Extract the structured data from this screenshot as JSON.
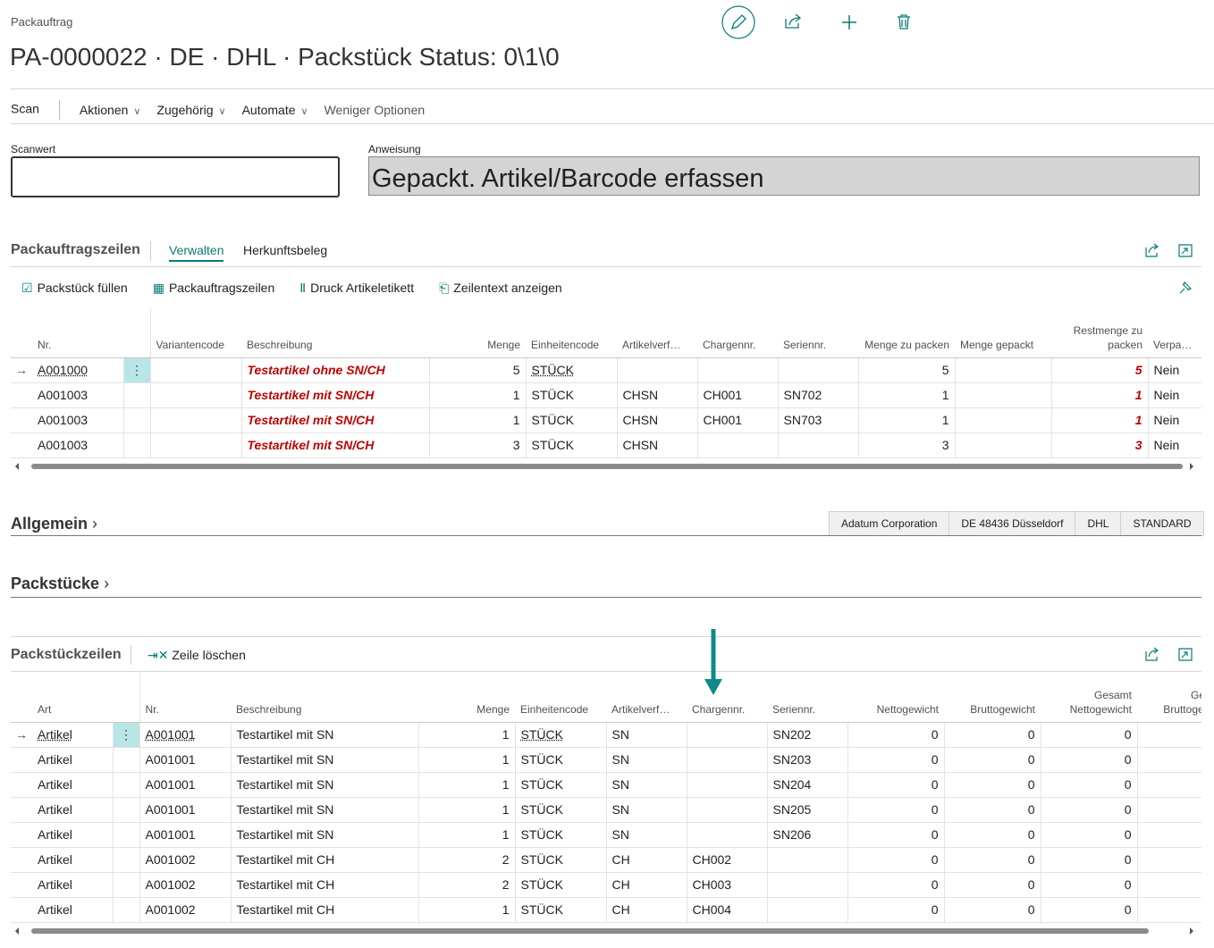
{
  "header": {
    "breadcrumb": "Packauftrag",
    "title": "PA-0000022 · DE · DHL · Packstück Status: 0\\1\\0"
  },
  "actions": [
    "Scan",
    "Aktionen",
    "Zugehörig",
    "Automate",
    "Weniger Optionen"
  ],
  "fields": {
    "scan_label": "Scanwert",
    "instruction_label": "Anweisung",
    "instruction": "Gepackt. Artikel/Barcode erfassen"
  },
  "lines": {
    "title": "Packauftragszeilen",
    "tabs": [
      "Verwalten",
      "Herkunftsbeleg"
    ],
    "tools": [
      "Packstück füllen",
      "Packauftragszeilen",
      "Druck Artikeletikett",
      "Zeilentext anzeigen"
    ],
    "columns": [
      "Nr.",
      "Variantencode",
      "Beschreibung",
      "Menge",
      "Einheitencode",
      "Artikelverf…",
      "Chargennr.",
      "Seriennr.",
      "Menge zu packen",
      "Menge gepackt",
      "Restmenge zu packen",
      "Verpa…"
    ],
    "rows": [
      [
        "A001000",
        null,
        "Testartikel ohne SN/CH",
        5,
        "STÜCK",
        null,
        null,
        null,
        5,
        null,
        5,
        "Nein"
      ],
      [
        "A001003",
        null,
        "Testartikel mit SN/CH",
        1,
        "STÜCK",
        "CHSN",
        "CH001",
        "SN702",
        1,
        null,
        1,
        "Nein"
      ],
      [
        "A001003",
        null,
        "Testartikel mit SN/CH",
        1,
        "STÜCK",
        "CHSN",
        "CH001",
        "SN703",
        1,
        null,
        1,
        "Nein"
      ],
      [
        "A001003",
        null,
        "Testartikel mit SN/CH",
        3,
        "STÜCK",
        "CHSN",
        null,
        null,
        3,
        null,
        3,
        "Nein"
      ]
    ]
  },
  "general": {
    "title": "Allgemein",
    "tags": [
      "Adatum Corporation",
      "DE 48436 Düsseldorf",
      "DHL",
      "STANDARD"
    ]
  },
  "packages": {
    "title": "Packstücke"
  },
  "package_lines": {
    "title": "Packstückzeilen",
    "tools": [
      "Zeile löschen"
    ],
    "columns": [
      "Art",
      "Nr.",
      "Beschreibung",
      "Menge",
      "Einheitencode",
      "Artikelverf…",
      "Chargennr.",
      "Seriennr.",
      "Nettogewicht",
      "Bruttogewicht",
      "Gesamt Nettogewicht",
      "Gesamt Bruttogewicht"
    ],
    "rows": [
      [
        "Artikel",
        "A001001",
        "Testartikel mit SN",
        1,
        "STÜCK",
        "SN",
        null,
        "SN202",
        0,
        0,
        0,
        null
      ],
      [
        "Artikel",
        "A001001",
        "Testartikel mit SN",
        1,
        "STÜCK",
        "SN",
        null,
        "SN203",
        0,
        0,
        0,
        null
      ],
      [
        "Artikel",
        "A001001",
        "Testartikel mit SN",
        1,
        "STÜCK",
        "SN",
        null,
        "SN204",
        0,
        0,
        0,
        null
      ],
      [
        "Artikel",
        "A001001",
        "Testartikel mit SN",
        1,
        "STÜCK",
        "SN",
        null,
        "SN205",
        0,
        0,
        0,
        null
      ],
      [
        "Artikel",
        "A001001",
        "Testartikel mit SN",
        1,
        "STÜCK",
        "SN",
        null,
        "SN206",
        0,
        0,
        0,
        null
      ],
      [
        "Artikel",
        "A001002",
        "Testartikel mit CH",
        2,
        "STÜCK",
        "CH",
        "CH002",
        null,
        0,
        0,
        0,
        null
      ],
      [
        "Artikel",
        "A001002",
        "Testartikel mit CH",
        2,
        "STÜCK",
        "CH",
        "CH003",
        null,
        0,
        0,
        0,
        null
      ],
      [
        "Artikel",
        "A001002",
        "Testartikel mit CH",
        1,
        "STÜCK",
        "CH",
        "CH004",
        null,
        0,
        0,
        0,
        null
      ]
    ]
  }
}
